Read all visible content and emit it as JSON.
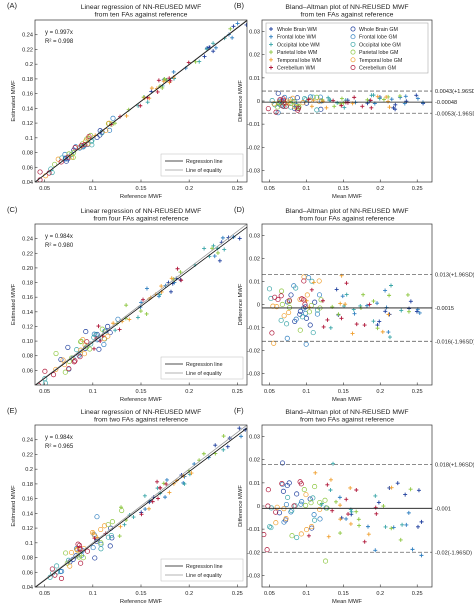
{
  "panels": [
    {
      "label": "(A)",
      "type": "regression",
      "title": [
        "Linear regression of NN-REUSED MWF",
        "from ten FAs against reference"
      ],
      "xlabel": "Reference MWF",
      "ylabel": "Estimated MWF",
      "eq": [
        "y = 0.997x",
        "R² = 0.998"
      ],
      "slope": 0.997,
      "spread": 0.004,
      "xlim": [
        0.04,
        0.26
      ],
      "ylim": [
        0.04,
        0.26
      ],
      "xticks": [
        0.05,
        0.1,
        0.15,
        0.2,
        0.25
      ],
      "xticklabels": [
        "0.05",
        "0.1",
        "0.15",
        "0.2",
        "0.25"
      ],
      "yticks": [
        0.04,
        0.06,
        0.08,
        0.1,
        0.12,
        0.14,
        0.16,
        0.18,
        0.2,
        0.22,
        0.24
      ],
      "yticklabels": [
        "0.04",
        "0.06",
        "0.08",
        "0.1",
        "0.12",
        "0.14",
        "0.16",
        "0.18",
        "0.2",
        "0.22",
        "0.24"
      ],
      "legend": [
        "Regression line",
        "Line of equality"
      ]
    },
    {
      "label": "(B)",
      "type": "blandaltman",
      "title": [
        "Bland–Altman plot of NN-REUSED MWF",
        "from ten FAs against reference"
      ],
      "xlabel": "Mean MWF",
      "ylabel": "Difference MWF",
      "mean_diff": -0.00048,
      "upper": 0.0043,
      "lower": -0.0053,
      "spread": 0.002,
      "sd_labels": [
        "0.0043(+1.96SD)",
        "-0.00048",
        "-0.0053(-1.96SD)"
      ],
      "xlim": [
        0.04,
        0.27
      ],
      "ylim": [
        -0.035,
        0.035
      ],
      "xticks": [
        0.05,
        0.1,
        0.15,
        0.2,
        0.25
      ],
      "xticklabels": [
        "0.05",
        "0.1",
        "0.15",
        "0.2",
        "0.25"
      ],
      "yticks": [
        -0.03,
        -0.02,
        -0.01,
        0,
        0.01,
        0.02,
        0.03
      ],
      "yticklabels": [
        "-0.03",
        "-0.02",
        "-0.01",
        "0",
        "0.01",
        "0.02",
        "0.03"
      ],
      "legend": [
        "Whole Brain WM",
        "Whole Brain GM",
        "Frontal lobe WM",
        "Frontal lobe GM",
        "Occipital lobe WM",
        "Occipital lobe GM",
        "Parietal lobe WM",
        "Parietal lobe GM",
        "Temporal lobe WM",
        "Temporal lobe GM",
        "Cerebellum WM",
        "Cerebellum GM"
      ]
    },
    {
      "label": "(C)",
      "type": "regression",
      "title": [
        "Linear regression of NN-REUSED MWF",
        "from four FAs against reference"
      ],
      "xlabel": "Reference MWF",
      "ylabel": "Estimated MWF",
      "eq": [
        "y = 0.984x",
        "R² = 0.980"
      ],
      "slope": 0.984,
      "spread": 0.008,
      "xlim": [
        0.04,
        0.26
      ],
      "ylim": [
        0.04,
        0.26
      ],
      "xticks": [
        0.05,
        0.1,
        0.15,
        0.2,
        0.25
      ],
      "xticklabels": [
        "0.05",
        "0.1",
        "0.15",
        "0.2",
        "0.25"
      ],
      "yticks": [
        0.06,
        0.08,
        0.1,
        0.12,
        0.14,
        0.16,
        0.18,
        0.2,
        0.22,
        0.24
      ],
      "yticklabels": [
        "0.06",
        "0.08",
        "0.10",
        "0.12",
        "0.14",
        "0.16",
        "0.18",
        "0.20",
        "0.22",
        "0.24"
      ],
      "legend": [
        "Regression line",
        "Line of equality"
      ]
    },
    {
      "label": "(D)",
      "type": "blandaltman",
      "title": [
        "Bland–Altman plot of NN-REUSED MWF",
        "from four FAs against reference"
      ],
      "xlabel": "Mean MWF",
      "ylabel": "Difference MWF",
      "mean_diff": -0.0015,
      "upper": 0.013,
      "lower": -0.016,
      "spread": 0.006,
      "sd_labels": [
        "0.013(+1.96SD)",
        "-0.0015",
        "-0.016(-1.96SD)"
      ],
      "xlim": [
        0.04,
        0.27
      ],
      "ylim": [
        -0.035,
        0.035
      ],
      "xticks": [
        0.05,
        0.1,
        0.15,
        0.2,
        0.25
      ],
      "xticklabels": [
        "0.05",
        "0.1",
        "0.15",
        "0.2",
        "0.25"
      ],
      "yticks": [
        -0.03,
        -0.02,
        -0.01,
        0,
        0.01,
        0.02,
        0.03
      ],
      "yticklabels": [
        "-0.03",
        "-0.02",
        "-0.01",
        "0",
        "0.01",
        "0.02",
        "0.03"
      ]
    },
    {
      "label": "(E)",
      "type": "regression",
      "title": [
        "Linear regression of NN-REUSED MWF",
        "from two FAs against reference"
      ],
      "xlabel": "Reference MWF",
      "ylabel": "Estimated MWF",
      "eq": [
        "y = 0.984x",
        "R² = 0.965"
      ],
      "slope": 0.984,
      "spread": 0.01,
      "xlim": [
        0.04,
        0.26
      ],
      "ylim": [
        0.04,
        0.26
      ],
      "xticks": [
        0.05,
        0.1,
        0.15,
        0.2,
        0.25
      ],
      "xticklabels": [
        "0.05",
        "0.1",
        "0.15",
        "0.2",
        "0.25"
      ],
      "yticks": [
        0.04,
        0.06,
        0.08,
        0.1,
        0.12,
        0.14,
        0.16,
        0.18,
        0.2,
        0.22,
        0.24
      ],
      "yticklabels": [
        "0.04",
        "0.06",
        "0.08",
        "0.1",
        "0.12",
        "0.14",
        "0.16",
        "0.18",
        "0.2",
        "0.22",
        "0.24"
      ],
      "legend": [
        "Regression line",
        "Line of equality"
      ]
    },
    {
      "label": "(F)",
      "type": "blandaltman",
      "title": [
        "Bland–Altman plot of NN-REUSED MWF",
        "from two FAs against reference"
      ],
      "xlabel": "Mean MWF",
      "ylabel": "Difference MWF",
      "mean_diff": -0.001,
      "upper": 0.018,
      "lower": -0.02,
      "spread": 0.008,
      "sd_labels": [
        "0.018(+1.96SD)",
        "-0.001",
        "-0.02(-1.96SD)"
      ],
      "xlim": [
        0.04,
        0.27
      ],
      "ylim": [
        -0.035,
        0.035
      ],
      "xticks": [
        0.05,
        0.1,
        0.15,
        0.2,
        0.25
      ],
      "xticklabels": [
        "0.05",
        "0.1",
        "0.15",
        "0.2",
        "0.25"
      ],
      "yticks": [
        -0.03,
        -0.02,
        -0.01,
        0,
        0.01,
        0.02,
        0.03
      ],
      "yticklabels": [
        "-0.03",
        "-0.02",
        "-0.01",
        "0",
        "0.01",
        "0.02",
        "0.03"
      ]
    }
  ],
  "regions": [
    {
      "name": "Whole Brain",
      "color": "#1f3f9e",
      "wm": [
        0.14,
        0.26
      ],
      "gm": [
        0.06,
        0.12
      ]
    },
    {
      "name": "Frontal lobe",
      "color": "#2f7fc0",
      "wm": [
        0.14,
        0.26
      ],
      "gm": [
        0.06,
        0.13
      ]
    },
    {
      "name": "Occipital lobe",
      "color": "#3aa6a8",
      "wm": [
        0.12,
        0.24
      ],
      "gm": [
        0.05,
        0.12
      ]
    },
    {
      "name": "Parietal lobe",
      "color": "#8cc63f",
      "wm": [
        0.12,
        0.25
      ],
      "gm": [
        0.06,
        0.13
      ]
    },
    {
      "name": "Temporal lobe",
      "color": "#f0a030",
      "wm": [
        0.1,
        0.22
      ],
      "gm": [
        0.05,
        0.12
      ]
    },
    {
      "name": "Cerebellum",
      "color": "#b0183a",
      "wm": [
        0.1,
        0.2
      ],
      "gm": [
        0.04,
        0.1
      ]
    }
  ],
  "chart_data": [
    {
      "type": "scatter",
      "title": "Linear regression of NN-REUSED MWF from ten FAs against reference",
      "xlabel": "Reference MWF",
      "ylabel": "Estimated MWF",
      "fit": "y = 0.997x",
      "r2": 0.998,
      "xlim": [
        0.04,
        0.26
      ],
      "ylim": [
        0.04,
        0.26
      ]
    },
    {
      "type": "scatter",
      "title": "Bland–Altman plot of NN-REUSED MWF from ten FAs against reference",
      "xlabel": "Mean MWF",
      "ylabel": "Difference MWF",
      "mean": -0.00048,
      "upper_loa": 0.0043,
      "lower_loa": -0.0053,
      "xlim": [
        0.04,
        0.27
      ],
      "ylim": [
        -0.035,
        0.035
      ]
    },
    {
      "type": "scatter",
      "title": "Linear regression of NN-REUSED MWF from four FAs against reference",
      "xlabel": "Reference MWF",
      "ylabel": "Estimated MWF",
      "fit": "y = 0.984x",
      "r2": 0.98,
      "xlim": [
        0.04,
        0.26
      ],
      "ylim": [
        0.04,
        0.26
      ]
    },
    {
      "type": "scatter",
      "title": "Bland–Altman plot of NN-REUSED MWF from four FAs against reference",
      "xlabel": "Mean MWF",
      "ylabel": "Difference MWF",
      "mean": -0.0015,
      "upper_loa": 0.013,
      "lower_loa": -0.016,
      "xlim": [
        0.04,
        0.27
      ],
      "ylim": [
        -0.035,
        0.035
      ]
    },
    {
      "type": "scatter",
      "title": "Linear regression of NN-REUSED MWF from two FAs against reference",
      "xlabel": "Reference MWF",
      "ylabel": "Estimated MWF",
      "fit": "y = 0.984x",
      "r2": 0.965,
      "xlim": [
        0.04,
        0.26
      ],
      "ylim": [
        0.04,
        0.26
      ]
    },
    {
      "type": "scatter",
      "title": "Bland–Altman plot of NN-REUSED MWF from two FAs against reference",
      "xlabel": "Mean MWF",
      "ylabel": "Difference MWF",
      "mean": -0.001,
      "upper_loa": 0.018,
      "lower_loa": -0.02,
      "xlim": [
        0.04,
        0.27
      ],
      "ylim": [
        -0.035,
        0.035
      ]
    }
  ]
}
